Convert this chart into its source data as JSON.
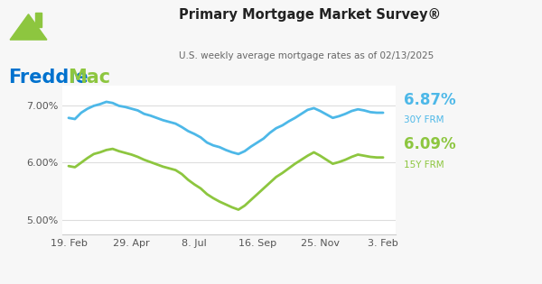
{
  "title": "Primary Mortgage Market Survey®",
  "subtitle": "U.S. weekly average mortgage rates as of 02/13/2025",
  "bg_color": "#f7f7f7",
  "plot_bg_color": "#ffffff",
  "line30_color": "#4db8e8",
  "line15_color": "#8dc63f",
  "freddie_blue": "#0072ce",
  "freddie_green": "#8dc63f",
  "label30_color": "#4db8e8",
  "label15_color": "#8dc63f",
  "ylabel_color": "#555555",
  "tick_label_color": "#555555",
  "yticks": [
    5.0,
    6.0,
    7.0
  ],
  "ytick_labels": [
    "5.00%",
    "6.00%",
    "7.00%"
  ],
  "xtick_labels": [
    "19. Feb",
    "29. Apr",
    "8. Jul",
    "16. Sep",
    "25. Nov",
    "3. Feb"
  ],
  "ylim": [
    4.75,
    7.35
  ],
  "rate30_label": "6.87%",
  "rate15_label": "6.09%",
  "frm30_label": "30Y FRM",
  "frm15_label": "15Y FRM",
  "x30": [
    0,
    1,
    2,
    3,
    4,
    5,
    6,
    7,
    8,
    9,
    10,
    11,
    12,
    13,
    14,
    15,
    16,
    17,
    18,
    19,
    20,
    21,
    22,
    23,
    24,
    25,
    26,
    27,
    28,
    29,
    30,
    31,
    32,
    33,
    34,
    35,
    36,
    37,
    38,
    39,
    40,
    41,
    42,
    43,
    44,
    45,
    46,
    47,
    48,
    49,
    50
  ],
  "y30": [
    6.78,
    6.76,
    6.87,
    6.94,
    6.99,
    7.02,
    7.06,
    7.04,
    6.99,
    6.97,
    6.94,
    6.91,
    6.85,
    6.82,
    6.78,
    6.74,
    6.71,
    6.68,
    6.62,
    6.55,
    6.5,
    6.44,
    6.35,
    6.3,
    6.27,
    6.22,
    6.18,
    6.15,
    6.2,
    6.28,
    6.35,
    6.42,
    6.52,
    6.6,
    6.65,
    6.72,
    6.78,
    6.85,
    6.92,
    6.95,
    6.9,
    6.84,
    6.78,
    6.81,
    6.85,
    6.9,
    6.93,
    6.91,
    6.88,
    6.87,
    6.87
  ],
  "x15": [
    0,
    1,
    2,
    3,
    4,
    5,
    6,
    7,
    8,
    9,
    10,
    11,
    12,
    13,
    14,
    15,
    16,
    17,
    18,
    19,
    20,
    21,
    22,
    23,
    24,
    25,
    26,
    27,
    28,
    29,
    30,
    31,
    32,
    33,
    34,
    35,
    36,
    37,
    38,
    39,
    40,
    41,
    42,
    43,
    44,
    45,
    46,
    47,
    48,
    49,
    50
  ],
  "y15": [
    5.94,
    5.92,
    6.0,
    6.08,
    6.15,
    6.18,
    6.22,
    6.24,
    6.2,
    6.17,
    6.14,
    6.1,
    6.05,
    6.01,
    5.97,
    5.93,
    5.9,
    5.87,
    5.8,
    5.7,
    5.62,
    5.55,
    5.45,
    5.38,
    5.32,
    5.27,
    5.22,
    5.18,
    5.25,
    5.35,
    5.45,
    5.55,
    5.65,
    5.75,
    5.82,
    5.9,
    5.98,
    6.05,
    6.12,
    6.18,
    6.12,
    6.05,
    5.98,
    6.01,
    6.05,
    6.1,
    6.14,
    6.12,
    6.1,
    6.09,
    6.09
  ]
}
